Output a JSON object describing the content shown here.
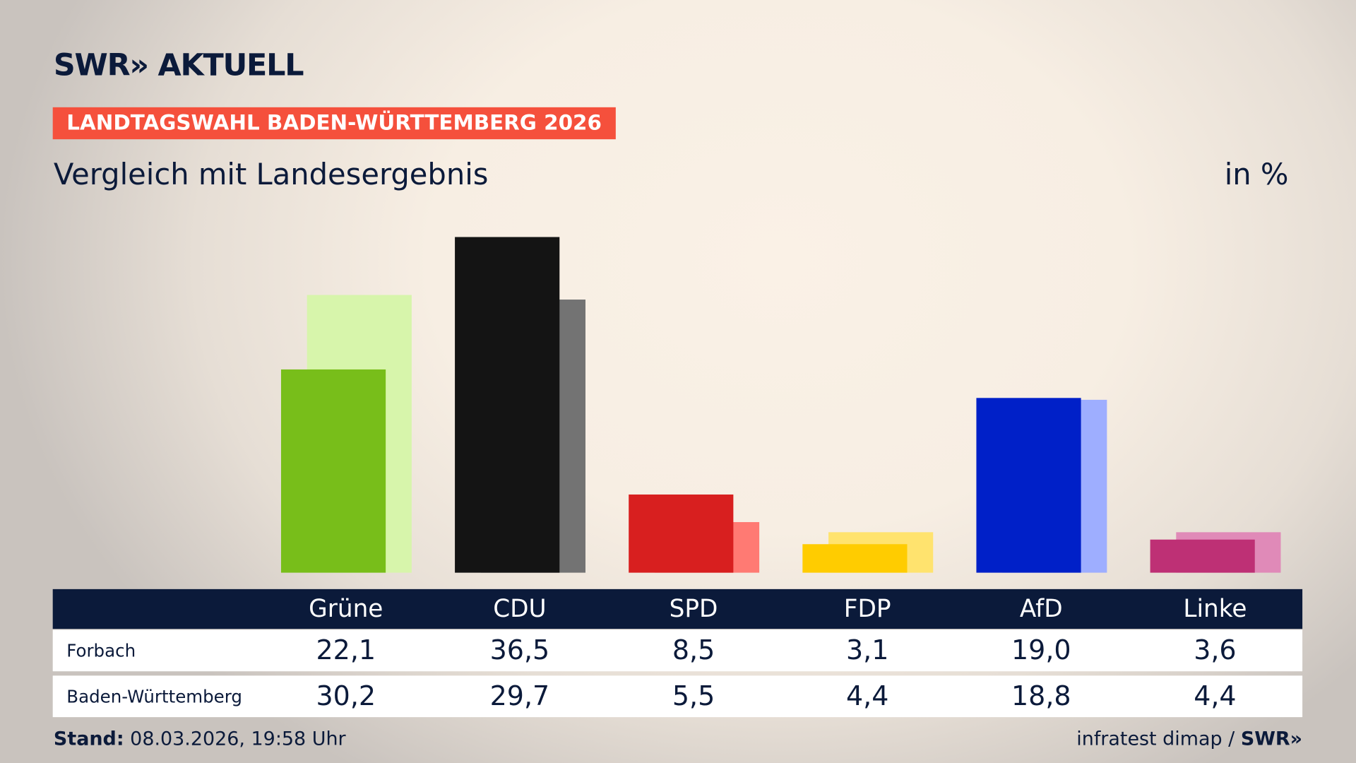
{
  "header": {
    "logo": "SWR» AKTUELL",
    "badge": "LANDTAGSWAHL BADEN-WÜRTTEMBERG 2026",
    "subtitle": "Vergleich mit Landesergebnis",
    "unit": "in %"
  },
  "chart_data": {
    "type": "bar",
    "categories": [
      "Grüne",
      "CDU",
      "SPD",
      "FDP",
      "AfD",
      "Linke"
    ],
    "series": [
      {
        "name": "Forbach",
        "values": [
          22.1,
          36.5,
          8.5,
          3.1,
          19.0,
          3.6
        ],
        "colors": [
          "#78be1a",
          "#141414",
          "#d81f1f",
          "#ffcc00",
          "#0020c8",
          "#be3075"
        ]
      },
      {
        "name": "Baden-Württemberg",
        "values": [
          30.2,
          29.7,
          5.5,
          4.4,
          18.8,
          4.4
        ],
        "colors": [
          "#d7f5ab",
          "#737373",
          "#ff7a73",
          "#ffe36e",
          "#9eaeff",
          "#e08ab8"
        ]
      }
    ],
    "display_values": [
      [
        "22,1",
        "36,5",
        "8,5",
        "3,1",
        "19,0",
        "3,6"
      ],
      [
        "30,2",
        "29,7",
        "5,5",
        "4,4",
        "18,8",
        "4,4"
      ]
    ],
    "ylim": [
      0,
      36.5
    ],
    "grid": false
  },
  "footer": {
    "stand_label": "Stand:",
    "stand_value": " 08.03.2026, 19:58 Uhr",
    "source": "infratest dimap / ",
    "source_logo": "SWR»"
  }
}
